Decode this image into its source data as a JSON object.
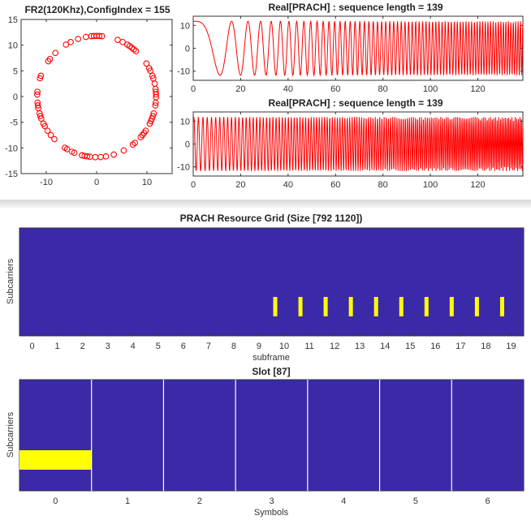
{
  "chart_data": [
    {
      "type": "scatter",
      "title": "FR2(120Khz),ConfigIndex = 155",
      "xlim": [
        -15,
        15
      ],
      "ylim": [
        -15,
        15
      ],
      "xticks": [
        -10,
        0,
        10
      ],
      "yticks": [
        15,
        10,
        5,
        0,
        -5,
        -10,
        -15
      ],
      "marker": "circle",
      "color": "#ff0000",
      "radius": 11.8,
      "num_points": 139
    },
    {
      "type": "line",
      "title": "Real[PRACH] : sequence length = 139",
      "xlim": [
        0,
        139
      ],
      "ylim": [
        -14,
        14
      ],
      "xticks": [
        0,
        20,
        40,
        60,
        80,
        100,
        120
      ],
      "yticks": [
        10,
        0,
        -10
      ],
      "color": "#ff0000",
      "amplitude": 11.8,
      "phase_index": [
        1,
        0
      ]
    },
    {
      "type": "line",
      "title": "Real[PRACH] : sequence length = 139",
      "xlim": [
        0,
        139
      ],
      "ylim": [
        -14,
        14
      ],
      "xticks": [
        0,
        20,
        40,
        60,
        80,
        100,
        120
      ],
      "yticks": [
        10,
        0,
        -10
      ],
      "color": "#ff0000",
      "amplitude": 11.8,
      "phase_index": [
        1,
        70
      ]
    },
    {
      "type": "heatmap",
      "title": "PRACH Resource Grid (Size [792 1120])",
      "xlabel": "subframe",
      "ylabel": "Subcarriers",
      "xticks": [
        "0",
        "1",
        "2",
        "3",
        "4",
        "5",
        "6",
        "7",
        "8",
        "9",
        "10",
        "11",
        "12",
        "13",
        "14",
        "15",
        "16",
        "17",
        "18",
        "19"
      ],
      "xlim": [
        -0.5,
        19.5
      ],
      "background_color": "#3a2aa8",
      "active_color": "#ffff00",
      "active_subframes": [
        10,
        11,
        12,
        13,
        14,
        15,
        16,
        17,
        18,
        19
      ]
    },
    {
      "type": "heatmap",
      "title": "Slot [87]",
      "xlabel": "Symbols",
      "ylabel": "Subcarriers",
      "xticks": [
        "0",
        "1",
        "2",
        "3",
        "4",
        "5",
        "6"
      ],
      "xlim": [
        -0.5,
        6.5
      ],
      "background_color": "#3a2aa8",
      "active_color": "#ffff00",
      "active_symbols": [
        0
      ]
    }
  ]
}
